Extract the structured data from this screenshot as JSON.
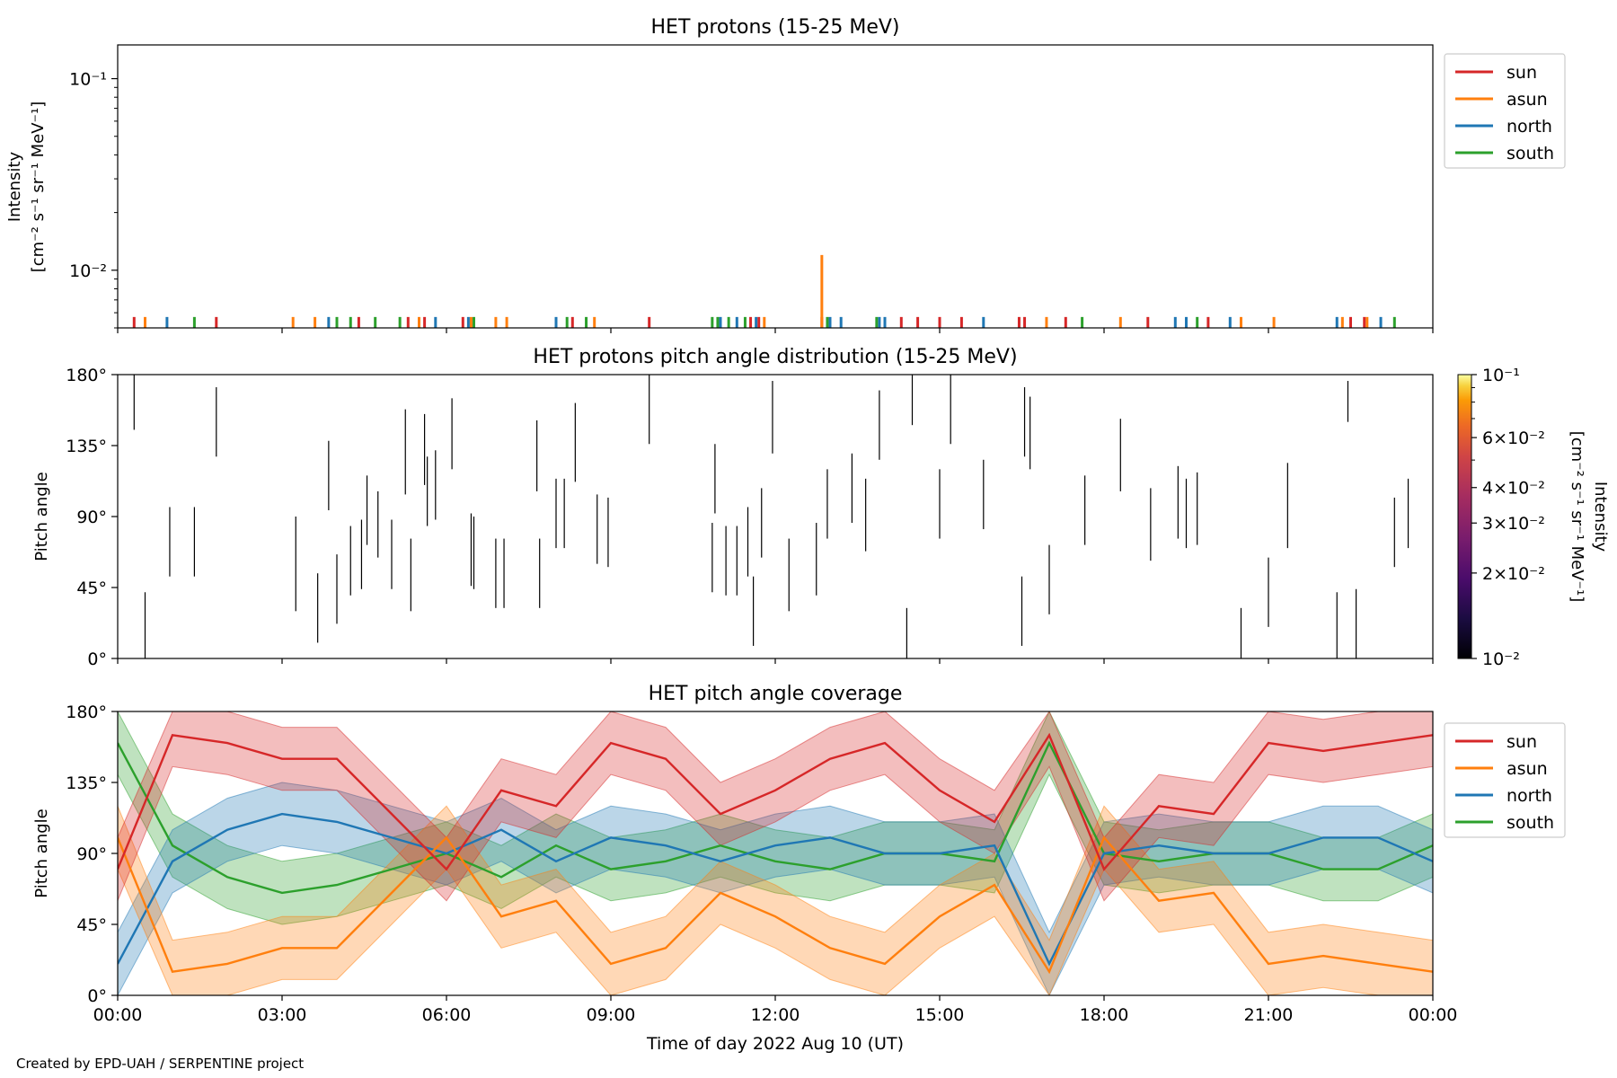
{
  "credit": "Created by EPD-UAH / SERPENTINE project",
  "colors": {
    "sun": "#d62728",
    "asun": "#ff7f0e",
    "north": "#1f77b4",
    "south": "#2ca02c"
  },
  "chart_data": [
    {
      "type": "line",
      "title": "HET protons (15-25 MeV)",
      "ylabel": "Intensity",
      "ylabel_units": "[cm⁻² s⁻¹ sr⁻¹ MeV⁻¹]",
      "yscale": "log",
      "ylim": [
        0.005,
        0.15
      ],
      "yticks": [
        {
          "value": 0.1,
          "label": "10⁻¹"
        },
        {
          "value": 0.01,
          "label": "10⁻²"
        }
      ],
      "xlim": [
        0,
        24
      ],
      "legend": [
        "sun",
        "asun",
        "north",
        "south"
      ],
      "legend_loc": "upper right, outside",
      "series": [
        {
          "name": "sun",
          "color": "#d62728",
          "x": [
            0.3,
            1.8,
            4.4,
            5.3,
            5.6,
            6.3,
            8.3,
            9.7,
            11.55,
            11.7,
            12.85,
            14.3,
            14.6,
            15.0,
            15.4,
            16.45,
            16.55,
            17.3,
            18.8,
            19.9,
            22.5,
            22.75
          ],
          "values": [
            0.0057,
            0.0057,
            0.0057,
            0.0057,
            0.0057,
            0.0057,
            0.0057,
            0.0057,
            0.0057,
            0.0057,
            0.0057,
            0.0057,
            0.0057,
            0.0057,
            0.0057,
            0.0057,
            0.0057,
            0.0057,
            0.0057,
            0.0057,
            0.0057,
            0.0057
          ]
        },
        {
          "name": "asun",
          "color": "#ff7f0e",
          "x": [
            0.5,
            3.2,
            3.6,
            5.5,
            6.45,
            6.9,
            7.1,
            8.7,
            11.8,
            12.85,
            16.95,
            18.3,
            20.5,
            21.1,
            22.35,
            22.8
          ],
          "values": [
            0.0057,
            0.0057,
            0.0057,
            0.0057,
            0.0057,
            0.0057,
            0.0057,
            0.0057,
            0.0057,
            0.012,
            0.0057,
            0.0057,
            0.0057,
            0.0057,
            0.0057,
            0.0057
          ]
        },
        {
          "name": "north",
          "color": "#1f77b4",
          "x": [
            0.9,
            3.85,
            5.8,
            6.4,
            8.0,
            11.0,
            11.3,
            11.65,
            13.0,
            13.2,
            13.9,
            14.0,
            15.8,
            19.3,
            19.5,
            20.3,
            22.25,
            23.05
          ],
          "values": [
            0.0057,
            0.0057,
            0.0057,
            0.0057,
            0.0057,
            0.0057,
            0.0057,
            0.0057,
            0.0057,
            0.0057,
            0.0057,
            0.0057,
            0.0057,
            0.0057,
            0.0057,
            0.0057,
            0.0057,
            0.0057
          ]
        },
        {
          "name": "south",
          "color": "#2ca02c",
          "x": [
            1.4,
            4.0,
            4.25,
            4.7,
            5.15,
            6.5,
            8.2,
            8.55,
            10.85,
            10.95,
            11.15,
            11.45,
            12.95,
            13.85,
            17.6,
            19.7,
            23.3
          ],
          "values": [
            0.0057,
            0.0057,
            0.0057,
            0.0057,
            0.0057,
            0.0057,
            0.0057,
            0.0057,
            0.0057,
            0.0057,
            0.0057,
            0.0057,
            0.0057,
            0.0057,
            0.0057,
            0.0057,
            0.0057
          ]
        }
      ]
    },
    {
      "type": "heatmap",
      "title": "HET protons pitch angle distribution (15-25 MeV)",
      "ylabel": "Pitch angle",
      "ylim": [
        0,
        180
      ],
      "yticks": [
        "0°",
        "45°",
        "90°",
        "135°",
        "180°"
      ],
      "xlim": [
        0,
        24
      ],
      "colorbar": {
        "label": "Intensity",
        "units": "[cm⁻² s⁻¹ sr⁻¹ MeV⁻¹]",
        "scale": "log",
        "range": [
          0.01,
          0.1
        ],
        "ticks": [
          {
            "value": 0.1,
            "label": "10⁻¹"
          },
          {
            "value": 0.06,
            "label": "6×10⁻²"
          },
          {
            "value": 0.04,
            "label": "4×10⁻²"
          },
          {
            "value": 0.03,
            "label": "3×10⁻²"
          },
          {
            "value": 0.02,
            "label": "2×10⁻²"
          },
          {
            "value": 0.01,
            "label": "10⁻²"
          }
        ],
        "colormap": "inferno"
      },
      "segments": [
        {
          "t": 0.3,
          "lo": 145,
          "hi": 180
        },
        {
          "t": 0.5,
          "lo": 0,
          "hi": 42
        },
        {
          "t": 0.95,
          "lo": 52,
          "hi": 96
        },
        {
          "t": 1.4,
          "lo": 52,
          "hi": 96
        },
        {
          "t": 1.8,
          "lo": 128,
          "hi": 172
        },
        {
          "t": 3.25,
          "lo": 30,
          "hi": 90
        },
        {
          "t": 3.65,
          "lo": 10,
          "hi": 54
        },
        {
          "t": 3.85,
          "lo": 94,
          "hi": 138
        },
        {
          "t": 4.0,
          "lo": 22,
          "hi": 66
        },
        {
          "t": 4.25,
          "lo": 40,
          "hi": 84
        },
        {
          "t": 4.45,
          "lo": 44,
          "hi": 88
        },
        {
          "t": 4.55,
          "lo": 72,
          "hi": 116
        },
        {
          "t": 4.75,
          "lo": 64,
          "hi": 106
        },
        {
          "t": 5.0,
          "lo": 44,
          "hi": 88
        },
        {
          "t": 5.25,
          "lo": 104,
          "hi": 158
        },
        {
          "t": 5.35,
          "lo": 30,
          "hi": 76
        },
        {
          "t": 5.6,
          "lo": 110,
          "hi": 155
        },
        {
          "t": 5.65,
          "lo": 84,
          "hi": 128
        },
        {
          "t": 5.8,
          "lo": 88,
          "hi": 132
        },
        {
          "t": 6.1,
          "lo": 120,
          "hi": 165
        },
        {
          "t": 6.45,
          "lo": 46,
          "hi": 92
        },
        {
          "t": 6.5,
          "lo": 44,
          "hi": 90
        },
        {
          "t": 6.9,
          "lo": 32,
          "hi": 76
        },
        {
          "t": 7.05,
          "lo": 32,
          "hi": 76
        },
        {
          "t": 7.65,
          "lo": 106,
          "hi": 151
        },
        {
          "t": 7.7,
          "lo": 32,
          "hi": 76
        },
        {
          "t": 8.0,
          "lo": 70,
          "hi": 114
        },
        {
          "t": 8.15,
          "lo": 70,
          "hi": 114
        },
        {
          "t": 8.35,
          "lo": 112,
          "hi": 162
        },
        {
          "t": 8.75,
          "lo": 60,
          "hi": 104
        },
        {
          "t": 8.95,
          "lo": 58,
          "hi": 102
        },
        {
          "t": 9.7,
          "lo": 136,
          "hi": 180
        },
        {
          "t": 10.85,
          "lo": 42,
          "hi": 86
        },
        {
          "t": 10.9,
          "lo": 92,
          "hi": 136
        },
        {
          "t": 11.1,
          "lo": 40,
          "hi": 84
        },
        {
          "t": 11.3,
          "lo": 40,
          "hi": 84
        },
        {
          "t": 11.5,
          "lo": 52,
          "hi": 96
        },
        {
          "t": 11.6,
          "lo": 8,
          "hi": 52
        },
        {
          "t": 11.75,
          "lo": 64,
          "hi": 108
        },
        {
          "t": 11.95,
          "lo": 130,
          "hi": 176
        },
        {
          "t": 12.25,
          "lo": 30,
          "hi": 76
        },
        {
          "t": 12.75,
          "lo": 40,
          "hi": 86
        },
        {
          "t": 12.95,
          "lo": 76,
          "hi": 120
        },
        {
          "t": 13.4,
          "lo": 86,
          "hi": 130
        },
        {
          "t": 13.65,
          "lo": 68,
          "hi": 114
        },
        {
          "t": 13.9,
          "lo": 126,
          "hi": 170
        },
        {
          "t": 14.4,
          "lo": 0,
          "hi": 32
        },
        {
          "t": 14.5,
          "lo": 148,
          "hi": 180
        },
        {
          "t": 15.0,
          "lo": 76,
          "hi": 120
        },
        {
          "t": 15.2,
          "lo": 136,
          "hi": 180
        },
        {
          "t": 15.8,
          "lo": 82,
          "hi": 126
        },
        {
          "t": 16.5,
          "lo": 8,
          "hi": 52
        },
        {
          "t": 16.55,
          "lo": 128,
          "hi": 172
        },
        {
          "t": 16.65,
          "lo": 120,
          "hi": 166
        },
        {
          "t": 17.0,
          "lo": 28,
          "hi": 72
        },
        {
          "t": 17.65,
          "lo": 72,
          "hi": 116
        },
        {
          "t": 18.3,
          "lo": 106,
          "hi": 152
        },
        {
          "t": 18.85,
          "lo": 62,
          "hi": 108
        },
        {
          "t": 19.35,
          "lo": 76,
          "hi": 122
        },
        {
          "t": 19.5,
          "lo": 70,
          "hi": 114
        },
        {
          "t": 19.7,
          "lo": 72,
          "hi": 118
        },
        {
          "t": 20.5,
          "lo": 0,
          "hi": 32
        },
        {
          "t": 21.0,
          "lo": 20,
          "hi": 64
        },
        {
          "t": 21.35,
          "lo": 70,
          "hi": 124
        },
        {
          "t": 22.25,
          "lo": 0,
          "hi": 42
        },
        {
          "t": 22.45,
          "lo": 150,
          "hi": 176
        },
        {
          "t": 22.6,
          "lo": 0,
          "hi": 44
        },
        {
          "t": 23.3,
          "lo": 58,
          "hi": 102
        },
        {
          "t": 23.55,
          "lo": 70,
          "hi": 114
        }
      ]
    },
    {
      "type": "line",
      "title": "HET pitch angle coverage",
      "ylabel": "Pitch angle",
      "ylim": [
        0,
        180
      ],
      "yticks": [
        "0°",
        "45°",
        "90°",
        "135°",
        "180°"
      ],
      "xlim": [
        0,
        24
      ],
      "xlabel": "Time of day 2022 Aug 10 (UT)",
      "xticks": [
        "00:00",
        "03:00",
        "06:00",
        "09:00",
        "12:00",
        "15:00",
        "18:00",
        "21:00",
        "00:00"
      ],
      "legend": [
        "sun",
        "asun",
        "north",
        "south"
      ],
      "legend_loc": "upper right, outside",
      "shaded_band_halfwidth_deg": 20,
      "x": [
        0,
        1,
        2,
        3,
        4,
        5,
        6,
        7,
        8,
        9,
        10,
        11,
        12,
        13,
        14,
        15,
        16,
        17,
        18,
        19,
        20,
        21,
        22,
        23,
        24
      ],
      "series": [
        {
          "name": "sun",
          "color": "#d62728",
          "values": [
            80,
            165,
            160,
            150,
            150,
            115,
            80,
            130,
            120,
            160,
            150,
            115,
            130,
            150,
            160,
            130,
            110,
            165,
            80,
            120,
            115,
            160,
            155,
            160,
            165
          ]
        },
        {
          "name": "asun",
          "color": "#ff7f0e",
          "values": [
            100,
            15,
            20,
            30,
            30,
            65,
            100,
            50,
            60,
            20,
            30,
            65,
            50,
            30,
            20,
            50,
            70,
            15,
            100,
            60,
            65,
            20,
            25,
            20,
            15
          ]
        },
        {
          "name": "north",
          "color": "#1f77b4",
          "values": [
            20,
            85,
            105,
            115,
            110,
            100,
            90,
            105,
            85,
            100,
            95,
            85,
            95,
            100,
            90,
            90,
            95,
            20,
            90,
            95,
            90,
            90,
            100,
            100,
            85
          ]
        },
        {
          "name": "south",
          "color": "#2ca02c",
          "values": [
            160,
            95,
            75,
            65,
            70,
            80,
            90,
            75,
            95,
            80,
            85,
            95,
            85,
            80,
            90,
            90,
            85,
            160,
            90,
            85,
            90,
            90,
            80,
            80,
            95
          ]
        }
      ]
    }
  ]
}
